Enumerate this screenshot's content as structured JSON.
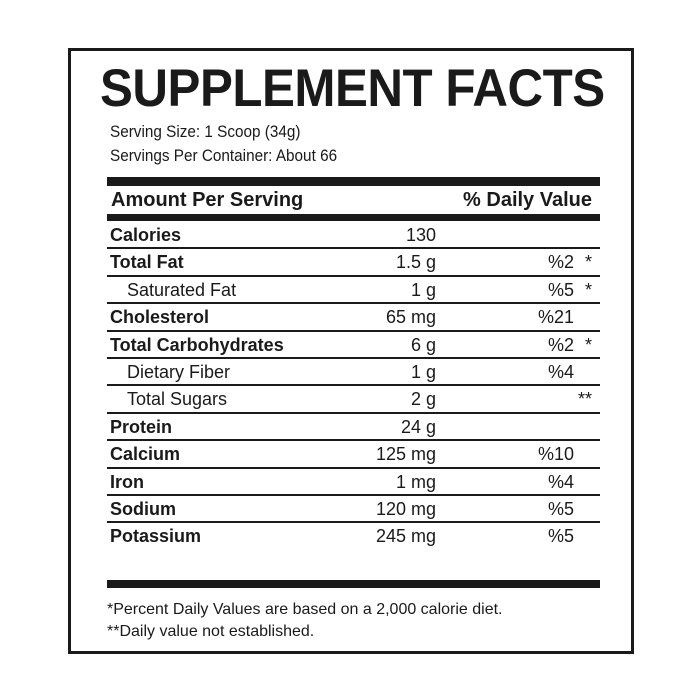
{
  "title": "SUPPLEMENT FACTS",
  "serving_size": "Serving Size: 1 Scoop (34g)",
  "servings_per_container": "Servings Per Container: About 66",
  "header": {
    "amount": "Amount Per Serving",
    "dv": "% Daily Value"
  },
  "rows": [
    {
      "name": "Calories",
      "amount": "130",
      "dv": "",
      "mark": "",
      "bold": true
    },
    {
      "name": "Total Fat",
      "amount": "1.5 g",
      "dv": "%2",
      "mark": "*",
      "bold": true
    },
    {
      "name": "Saturated Fat",
      "amount": "1 g",
      "dv": "%5",
      "mark": "*",
      "bold": false
    },
    {
      "name": "Cholesterol",
      "amount": "65 mg",
      "dv": "%21",
      "mark": "",
      "bold": true
    },
    {
      "name": "Total Carbohydrates",
      "amount": "6 g",
      "dv": "%2",
      "mark": "*",
      "bold": true
    },
    {
      "name": "Dietary Fiber",
      "amount": "1 g",
      "dv": "%4",
      "mark": "",
      "bold": false
    },
    {
      "name": "Total Sugars",
      "amount": "2 g",
      "dv": "",
      "mark": "**",
      "bold": false
    },
    {
      "name": "Protein",
      "amount": "24 g",
      "dv": "",
      "mark": "",
      "bold": true
    },
    {
      "name": "Calcium",
      "amount": "125 mg",
      "dv": "%10",
      "mark": "",
      "bold": true
    },
    {
      "name": "Iron",
      "amount": "1 mg",
      "dv": "%4",
      "mark": "",
      "bold": true
    },
    {
      "name": "Sodium",
      "amount": "120 mg",
      "dv": "%5",
      "mark": "",
      "bold": true
    },
    {
      "name": "Potassium",
      "amount": "245 mg",
      "dv": "%5",
      "mark": "",
      "bold": true
    }
  ],
  "footnotes": [
    "*Percent Daily Values are based on a 2,000 calorie diet.",
    "**Daily value not established."
  ]
}
